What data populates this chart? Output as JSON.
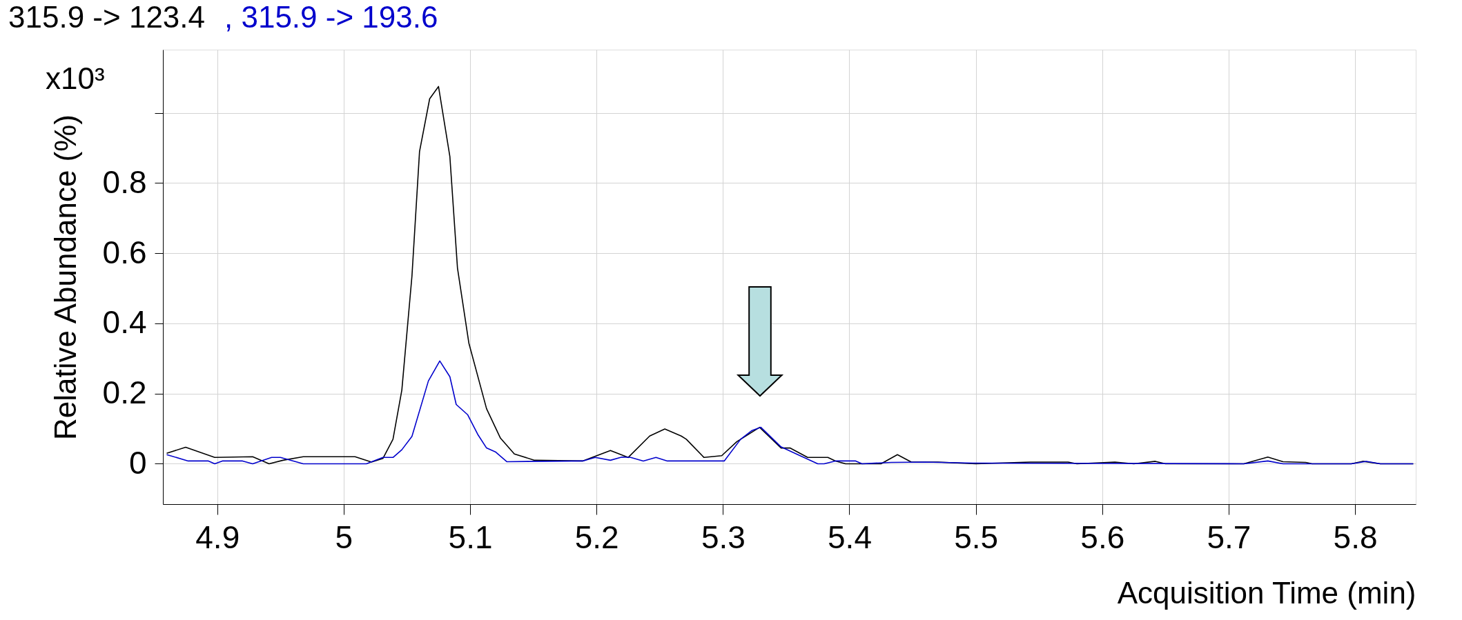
{
  "chart_data": {
    "type": "line",
    "xlabel": "Acquisition Time (min)",
    "ylabel": "Relative Abundance (%)",
    "annotations": [
      "x10³"
    ],
    "xlim": [
      4.857,
      5.848
    ],
    "ylim": [
      -0.115,
      1.18
    ],
    "xticks": [
      4.9,
      5,
      5.1,
      5.2,
      5.3,
      5.4,
      5.5,
      5.6,
      5.7,
      5.8
    ],
    "yticks": [
      0,
      0.2,
      0.4,
      0.6,
      0.8,
      {
        "value": 1,
        "label": null
      }
    ],
    "grid": true,
    "line_style": "solid",
    "marker": "none",
    "series": [
      {
        "name": "315.9 -> 123.4",
        "color": "#000000",
        "x": [
          4.86,
          4.875,
          4.898,
          4.928,
          4.941,
          4.952,
          4.968,
          5.009,
          5.022,
          5.031,
          5.039,
          5.046,
          5.054,
          5.06,
          5.068,
          5.075,
          5.084,
          5.09,
          5.099,
          5.113,
          5.124,
          5.135,
          5.151,
          5.189,
          5.211,
          5.225,
          5.242,
          5.254,
          5.267,
          5.271,
          5.285,
          5.299,
          5.311,
          5.329,
          5.346,
          5.353,
          5.367,
          5.383,
          5.389,
          5.397,
          5.425,
          5.438,
          5.449,
          5.47,
          5.5,
          5.543,
          5.573,
          5.58,
          5.61,
          5.625,
          5.642,
          5.65,
          5.712,
          5.731,
          5.743,
          5.761,
          5.766,
          5.797,
          5.806,
          5.82,
          5.846
        ],
        "values": [
          0.03,
          0.047,
          0.018,
          0.02,
          0.0,
          0.01,
          0.02,
          0.02,
          0.005,
          0.015,
          0.07,
          0.21,
          0.535,
          0.89,
          1.04,
          1.075,
          0.875,
          0.558,
          0.344,
          0.157,
          0.073,
          0.028,
          0.01,
          0.008,
          0.038,
          0.018,
          0.079,
          0.099,
          0.079,
          0.07,
          0.018,
          0.023,
          0.063,
          0.104,
          0.045,
          0.045,
          0.018,
          0.018,
          0.008,
          0.0,
          0.0,
          0.026,
          0.005,
          0.005,
          0.0,
          0.005,
          0.005,
          0.0,
          0.005,
          0.0,
          0.007,
          0.0,
          0.0,
          0.019,
          0.006,
          0.004,
          0.0,
          0.0,
          0.007,
          0.0,
          0.0
        ]
      },
      {
        "name": ", 315.9 -> 193.6",
        "color": "#0000cc",
        "x": [
          4.86,
          4.877,
          4.893,
          4.898,
          4.904,
          4.92,
          4.928,
          4.943,
          4.95,
          4.968,
          5.018,
          5.031,
          5.039,
          5.046,
          5.054,
          5.067,
          5.076,
          5.084,
          5.089,
          5.098,
          5.106,
          5.113,
          5.12,
          5.129,
          5.189,
          5.199,
          5.211,
          5.22,
          5.227,
          5.237,
          5.247,
          5.256,
          5.301,
          5.314,
          5.323,
          5.33,
          5.346,
          5.361,
          5.375,
          5.38,
          5.389,
          5.405,
          5.41,
          5.433,
          5.46,
          5.498,
          5.712,
          5.731,
          5.743,
          5.797,
          5.809,
          5.82,
          5.846
        ],
        "values": [
          0.026,
          0.008,
          0.008,
          0.0,
          0.008,
          0.008,
          0.0,
          0.018,
          0.018,
          0.0,
          0.0,
          0.018,
          0.018,
          0.04,
          0.078,
          0.236,
          0.293,
          0.248,
          0.169,
          0.14,
          0.084,
          0.045,
          0.034,
          0.006,
          0.008,
          0.018,
          0.01,
          0.019,
          0.018,
          0.008,
          0.018,
          0.008,
          0.008,
          0.07,
          0.095,
          0.104,
          0.048,
          0.023,
          0.0,
          0.0,
          0.008,
          0.008,
          0.0,
          0.004,
          0.005,
          0.002,
          0.0,
          0.008,
          0.0,
          0.0,
          0.007,
          0.0,
          0.0
        ]
      }
    ]
  }
}
